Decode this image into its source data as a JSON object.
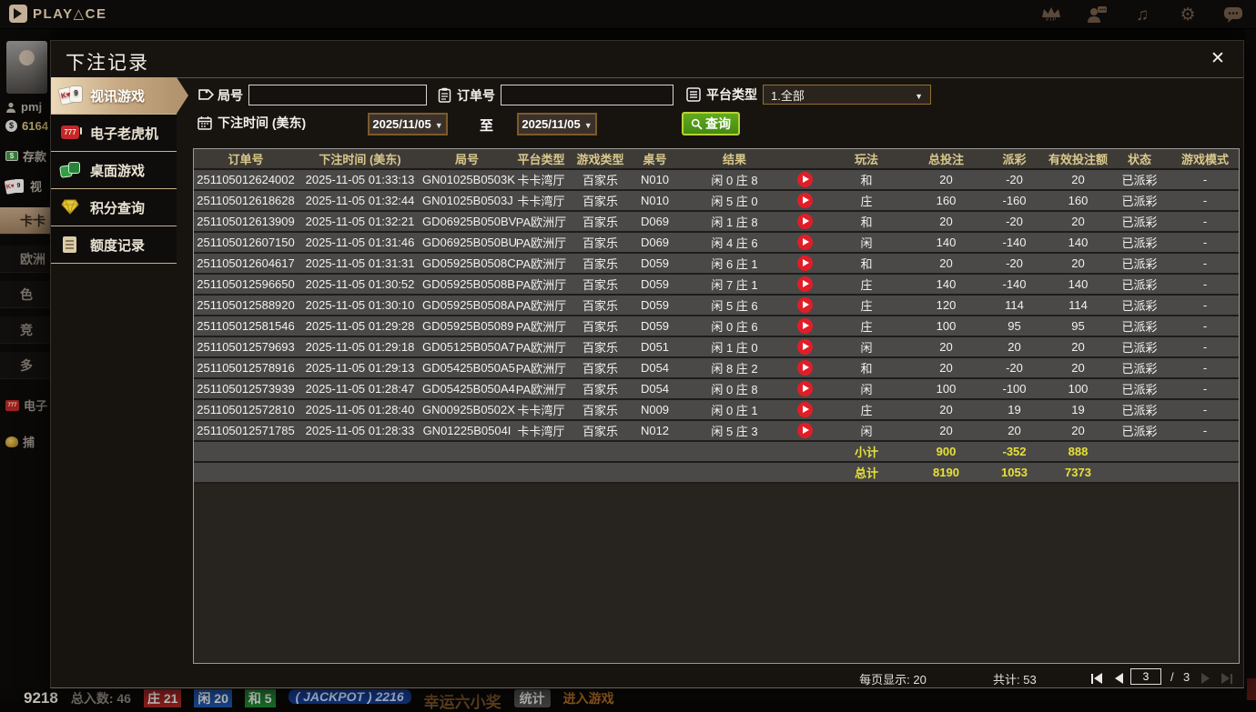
{
  "topbar": {
    "logo_text": "PLAY△CE",
    "icons": [
      "vip-icon",
      "service-icon",
      "music-icon",
      "settings-icon",
      "chat-icon"
    ],
    "vip_label": "VIP"
  },
  "background": {
    "username": "pmj",
    "balance": "6164",
    "deposit_label": "存款",
    "video_tab_fragment": "视",
    "tabs": [
      "卡卡",
      "欧洲",
      "色",
      "竞",
      "多",
      "电子",
      "捕"
    ],
    "bottom_fragments": {
      "table_number": "9218",
      "players": "总入数: 46",
      "banker": "庄 21",
      "player": "闲 20",
      "tie": "和 5",
      "jackpot": "( JACKPOT ) 2216",
      "lucky": "幸运六小奖",
      "stats": "统计",
      "enter": "进入游戏"
    }
  },
  "modal": {
    "title": "下注记录",
    "close_label": "✕",
    "sidebar": {
      "items": [
        {
          "label": "视讯游戏",
          "active": true
        },
        {
          "label": "电子老虎机",
          "active": false
        },
        {
          "label": "桌面游戏",
          "active": false
        },
        {
          "label": "积分查询",
          "active": false
        },
        {
          "label": "额度记录",
          "active": false
        }
      ]
    },
    "filters": {
      "round_label": "局号",
      "round_value": "",
      "order_label": "订单号",
      "order_value": "",
      "platform_label": "平台类型",
      "platform_value": "1.全部",
      "time_label": "下注时间 (美东)",
      "date_from": "2025/11/05",
      "to_label": "至",
      "date_to": "2025/11/05",
      "query_label": "查询"
    },
    "table": {
      "headers": [
        "订单号",
        "下注时间 (美东)",
        "局号",
        "平台类型",
        "游戏类型",
        "桌号",
        "结果",
        "",
        "玩法",
        "总投注",
        "派彩",
        "有效投注额",
        "状态",
        "游戏模式"
      ],
      "col_keys": [
        "order",
        "time",
        "round",
        "platform",
        "game",
        "table",
        "result",
        "play",
        "method",
        "bet",
        "payout",
        "valid",
        "status",
        "mode"
      ],
      "rows": [
        {
          "order": "251105012624002",
          "time": "2025-11-05 01:33:13",
          "round": "GN01025B0503K",
          "platform": "卡卡湾厅",
          "game": "百家乐",
          "table": "N010",
          "result": "闲 0 庄 8",
          "method": "和",
          "bet": "20",
          "payout": "-20",
          "payout_type": "loss",
          "valid": "20",
          "status": "已派彩",
          "mode": "-"
        },
        {
          "order": "251105012618628",
          "time": "2025-11-05 01:32:44",
          "round": "GN01025B0503J",
          "platform": "卡卡湾厅",
          "game": "百家乐",
          "table": "N010",
          "result": "闲 5 庄 0",
          "method": "庄",
          "bet": "160",
          "payout": "-160",
          "payout_type": "loss",
          "valid": "160",
          "status": "已派彩",
          "mode": "-"
        },
        {
          "order": "251105012613909",
          "time": "2025-11-05 01:32:21",
          "round": "GD06925B050BV",
          "platform": "PA欧洲厅",
          "game": "百家乐",
          "table": "D069",
          "result": "闲 1 庄 8",
          "method": "和",
          "bet": "20",
          "payout": "-20",
          "payout_type": "loss",
          "valid": "20",
          "status": "已派彩",
          "mode": "-"
        },
        {
          "order": "251105012607150",
          "time": "2025-11-05 01:31:46",
          "round": "GD06925B050BU",
          "platform": "PA欧洲厅",
          "game": "百家乐",
          "table": "D069",
          "result": "闲 4 庄 6",
          "method": "闲",
          "bet": "140",
          "payout": "-140",
          "payout_type": "loss",
          "valid": "140",
          "status": "已派彩",
          "mode": "-"
        },
        {
          "order": "251105012604617",
          "time": "2025-11-05 01:31:31",
          "round": "GD05925B0508C",
          "platform": "PA欧洲厅",
          "game": "百家乐",
          "table": "D059",
          "result": "闲 6 庄 1",
          "method": "和",
          "bet": "20",
          "payout": "-20",
          "payout_type": "loss",
          "valid": "20",
          "status": "已派彩",
          "mode": "-"
        },
        {
          "order": "251105012596650",
          "time": "2025-11-05 01:30:52",
          "round": "GD05925B0508B",
          "platform": "PA欧洲厅",
          "game": "百家乐",
          "table": "D059",
          "result": "闲 7 庄 1",
          "method": "庄",
          "bet": "140",
          "payout": "-140",
          "payout_type": "loss",
          "valid": "140",
          "status": "已派彩",
          "mode": "-"
        },
        {
          "order": "251105012588920",
          "time": "2025-11-05 01:30:10",
          "round": "GD05925B0508A",
          "platform": "PA欧洲厅",
          "game": "百家乐",
          "table": "D059",
          "result": "闲 5 庄 6",
          "method": "庄",
          "bet": "120",
          "payout": "114",
          "payout_type": "win",
          "valid": "114",
          "status": "已派彩",
          "mode": "-"
        },
        {
          "order": "251105012581546",
          "time": "2025-11-05 01:29:28",
          "round": "GD05925B05089",
          "platform": "PA欧洲厅",
          "game": "百家乐",
          "table": "D059",
          "result": "闲 0 庄 6",
          "method": "庄",
          "bet": "100",
          "payout": "95",
          "payout_type": "win",
          "valid": "95",
          "status": "已派彩",
          "mode": "-"
        },
        {
          "order": "251105012579693",
          "time": "2025-11-05 01:29:18",
          "round": "GD05125B050A7",
          "platform": "PA欧洲厅",
          "game": "百家乐",
          "table": "D051",
          "result": "闲 1 庄 0",
          "method": "闲",
          "bet": "20",
          "payout": "20",
          "payout_type": "win",
          "valid": "20",
          "status": "已派彩",
          "mode": "-"
        },
        {
          "order": "251105012578916",
          "time": "2025-11-05 01:29:13",
          "round": "GD05425B050A5",
          "platform": "PA欧洲厅",
          "game": "百家乐",
          "table": "D054",
          "result": "闲 8 庄 2",
          "method": "和",
          "bet": "20",
          "payout": "-20",
          "payout_type": "loss",
          "valid": "20",
          "status": "已派彩",
          "mode": "-"
        },
        {
          "order": "251105012573939",
          "time": "2025-11-05 01:28:47",
          "round": "GD05425B050A4",
          "platform": "PA欧洲厅",
          "game": "百家乐",
          "table": "D054",
          "result": "闲 0 庄 8",
          "method": "闲",
          "bet": "100",
          "payout": "-100",
          "payout_type": "loss",
          "valid": "100",
          "status": "已派彩",
          "mode": "-"
        },
        {
          "order": "251105012572810",
          "time": "2025-11-05 01:28:40",
          "round": "GN00925B0502X",
          "platform": "卡卡湾厅",
          "game": "百家乐",
          "table": "N009",
          "result": "闲 0 庄 1",
          "method": "庄",
          "bet": "20",
          "payout": "19",
          "payout_type": "win",
          "valid": "19",
          "status": "已派彩",
          "mode": "-"
        },
        {
          "order": "251105012571785",
          "time": "2025-11-05 01:28:33",
          "round": "GN01225B0504I",
          "platform": "卡卡湾厅",
          "game": "百家乐",
          "table": "N012",
          "result": "闲 5 庄 3",
          "method": "闲",
          "bet": "20",
          "payout": "20",
          "payout_type": "win",
          "valid": "20",
          "status": "已派彩",
          "mode": "-"
        }
      ],
      "subtotal": {
        "label": "小计",
        "bet": "900",
        "payout": "-352",
        "valid": "888"
      },
      "total": {
        "label": "总计",
        "bet": "8190",
        "payout": "1053",
        "valid": "7373"
      }
    },
    "pagination": {
      "per_page_label": "每页显示: 20",
      "total_label": "共计: 53",
      "page": "3",
      "separator": "/",
      "total_pages": "3"
    }
  },
  "colors": {
    "payout_win_red": "#e04f5b",
    "payout_loss_green": "#97d827",
    "status_paid_green": "#3fd23c",
    "totals_yellow": "#e6e138",
    "active_tab_tan": "#c7a983",
    "query_button_green": "#438c10",
    "header_gold": "#d9c88c"
  }
}
